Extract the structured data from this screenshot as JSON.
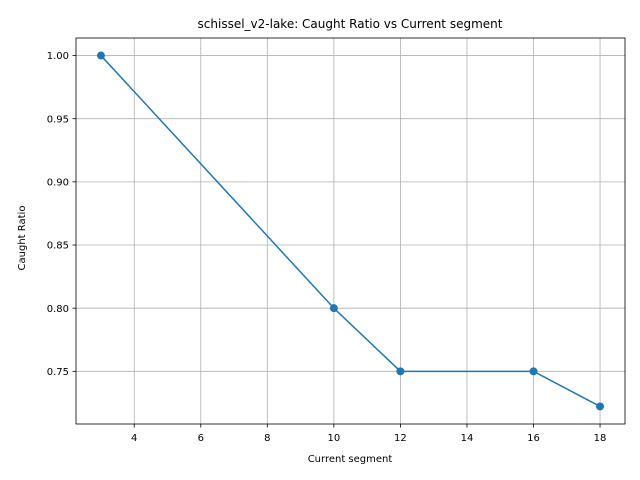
{
  "chart_data": {
    "type": "line",
    "title": "schissel_v2-lake: Caught Ratio vs Current segment",
    "xlabel": "Current segment",
    "ylabel": "Caught Ratio",
    "xlim": [
      2.25,
      18.75
    ],
    "ylim": [
      0.7083,
      1.0139
    ],
    "x_ticks": [
      4,
      6,
      8,
      10,
      12,
      14,
      16,
      18
    ],
    "x_tick_labels": [
      "4",
      "6",
      "8",
      "10",
      "12",
      "14",
      "16",
      "18"
    ],
    "y_ticks": [
      0.75,
      0.8,
      0.85,
      0.9,
      0.95,
      1.0
    ],
    "y_tick_labels": [
      "0.75",
      "0.80",
      "0.85",
      "0.90",
      "0.95",
      "1.00"
    ],
    "grid": true,
    "marker": "circle",
    "series": [
      {
        "color": "#1f77b4",
        "x": [
          3,
          10,
          12,
          16,
          18
        ],
        "y": [
          1.0,
          0.8,
          0.75,
          0.75,
          0.7222
        ]
      }
    ]
  }
}
